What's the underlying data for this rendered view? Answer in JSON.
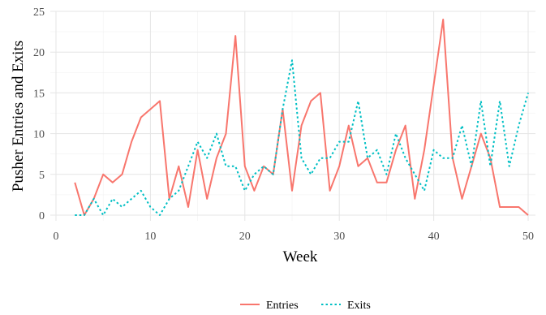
{
  "chart_data": {
    "type": "line",
    "xlabel": "Week",
    "ylabel": "Pusher Entries and Exits",
    "xlim": [
      0,
      50
    ],
    "ylim": [
      0,
      25
    ],
    "xticks": [
      0,
      10,
      20,
      30,
      40,
      50
    ],
    "yticks": [
      0,
      5,
      10,
      15,
      20,
      25
    ],
    "grid": true,
    "legend": "bottom",
    "x": [
      2,
      3,
      4,
      5,
      6,
      7,
      8,
      9,
      10,
      11,
      12,
      13,
      14,
      15,
      16,
      17,
      18,
      19,
      20,
      21,
      22,
      23,
      24,
      25,
      26,
      27,
      28,
      29,
      30,
      31,
      32,
      33,
      34,
      35,
      36,
      37,
      38,
      39,
      40,
      41,
      42,
      43,
      44,
      45,
      46,
      47,
      48,
      49,
      50
    ],
    "series": [
      {
        "name": "Entries",
        "color": "#F8766D",
        "dash": "solid",
        "values": [
          4,
          0,
          2,
          5,
          4,
          5,
          9,
          12,
          13,
          14,
          2,
          6,
          1,
          8,
          2,
          7,
          10,
          22,
          6,
          3,
          6,
          5,
          13,
          3,
          11,
          14,
          15,
          3,
          6,
          11,
          6,
          7,
          4,
          4,
          8,
          11,
          2,
          8,
          16,
          24,
          7,
          2,
          6,
          10,
          7,
          1,
          1,
          1,
          0
        ]
      },
      {
        "name": "Exits",
        "color": "#00BFC4",
        "dash": "dotted",
        "values": [
          0,
          0,
          2,
          0,
          2,
          1,
          2,
          3,
          1,
          0,
          2,
          3,
          6,
          9,
          7,
          10,
          6,
          6,
          3,
          5,
          6,
          5,
          13,
          19,
          7,
          5,
          7,
          7,
          9,
          9,
          14,
          7,
          8,
          5,
          10,
          7,
          5,
          3,
          8,
          7,
          7,
          11,
          6,
          14,
          6,
          14,
          6,
          11,
          15
        ]
      }
    ]
  }
}
